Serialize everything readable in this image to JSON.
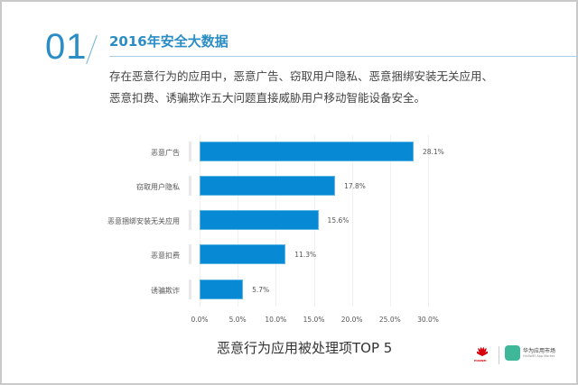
{
  "header": {
    "section_number": "01",
    "title": "2016年安全大数据",
    "description_line1": "存在恶意行为的应用中，恶意广告、窃取用户隐私、恶意捆绑安装无关应用、",
    "description_line2": "恶意扣费、诱骗欺诈五大问题直接威胁用户移动智能设备安全。"
  },
  "chart_data": {
    "type": "bar",
    "orientation": "horizontal",
    "title": "恶意行为应用被处理项TOP 5",
    "categories": [
      "恶意广告",
      "窃取用户隐私",
      "恶意捆绑安装无关应用",
      "恶意扣费",
      "诱骗欺诈"
    ],
    "values": [
      28.1,
      17.8,
      15.6,
      11.3,
      5.7
    ],
    "value_labels": [
      "28.1%",
      "17.8%",
      "15.6%",
      "11.3%",
      "5.7%"
    ],
    "xticks": [
      "0.0%",
      "5.0%",
      "10.0%",
      "15.0%",
      "20.0%",
      "25.0%",
      "30.0%"
    ],
    "xlim": [
      0,
      30
    ],
    "xlabel": "",
    "ylabel": "",
    "grid": true,
    "bar_color": "#0889d4"
  },
  "footer": {
    "brand": "HUAWEI",
    "app_market_name": "华为应用市场",
    "app_market_sub": "HUAWEI App Market"
  },
  "colors": {
    "accent": "#2a8dc5",
    "bar": "#0889d4"
  }
}
